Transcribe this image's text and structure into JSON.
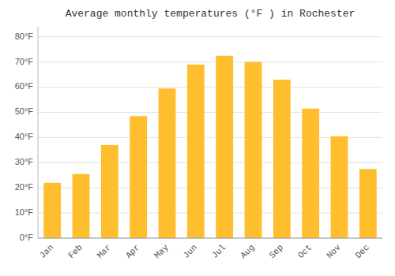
{
  "chart_data": {
    "type": "bar",
    "title": "Average monthly temperatures (°F ) in Rochester",
    "categories": [
      "Jan",
      "Feb",
      "Mar",
      "Apr",
      "May",
      "Jun",
      "Jul",
      "Aug",
      "Sep",
      "Oct",
      "Nov",
      "Dec"
    ],
    "values": [
      22,
      25.5,
      37,
      48.5,
      59.5,
      69,
      72.5,
      70,
      63,
      51.5,
      40.5,
      27.5
    ],
    "color": "#FFBE2D",
    "ylim": [
      0,
      84
    ],
    "yticks": [
      {
        "value": 0,
        "label": "0°F"
      },
      {
        "value": 10,
        "label": "10°F"
      },
      {
        "value": 20,
        "label": "20°F"
      },
      {
        "value": 30,
        "label": "30°F"
      },
      {
        "value": 40,
        "label": "40°F"
      },
      {
        "value": 50,
        "label": "50°F"
      },
      {
        "value": 60,
        "label": "60°F"
      },
      {
        "value": 70,
        "label": "70°F"
      },
      {
        "value": 80,
        "label": "80°F"
      }
    ],
    "grid": true
  }
}
